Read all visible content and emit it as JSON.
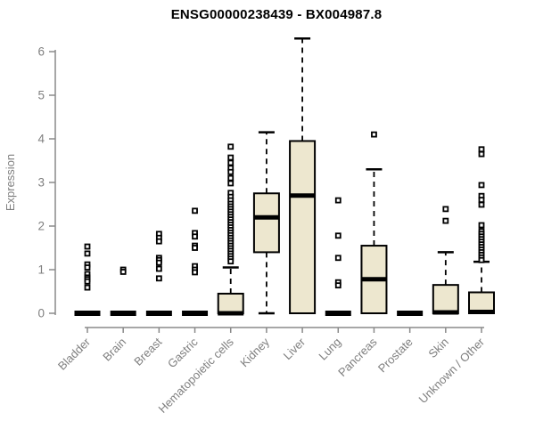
{
  "colors": {
    "box_fill": "#EDE7CF",
    "box_stroke": "#000000",
    "median": "#000000",
    "whisker": "#000000",
    "axis": "#8a8a8a",
    "tick_label": "#7f7f7f",
    "title": "#000000",
    "background": "#ffffff"
  },
  "chart_data": {
    "type": "boxplot",
    "title": "ENSG00000238439 - BX004987.8",
    "xlabel": "",
    "ylabel": "Expression",
    "ylim": [
      0,
      6
    ],
    "yticks": [
      0,
      1,
      2,
      3,
      4,
      5,
      6
    ],
    "grid": false,
    "legend": false,
    "categories": [
      "Bladder",
      "Brain",
      "Breast",
      "Gastric",
      "Hematopoietic cells",
      "Kidney",
      "Liver",
      "Lung",
      "Pancreas",
      "Prostate",
      "Skin",
      "Unknown / Other"
    ],
    "boxes": [
      {
        "category": "Bladder",
        "min": 0,
        "q1": 0,
        "median": 0,
        "q3": 0,
        "max": 0,
        "outliers": [
          1.53,
          1.37,
          1.12,
          1.05,
          0.9,
          0.82,
          0.78,
          0.73,
          0.59
        ]
      },
      {
        "category": "Brain",
        "min": 0,
        "q1": 0,
        "median": 0,
        "q3": 0,
        "max": 0,
        "outliers": [
          1.0,
          0.95
        ]
      },
      {
        "category": "Breast",
        "min": 0,
        "q1": 0,
        "median": 0,
        "q3": 0,
        "max": 0,
        "outliers": [
          1.82,
          1.73,
          1.65,
          1.27,
          1.22,
          1.16,
          1.02,
          0.8
        ]
      },
      {
        "category": "Gastric",
        "min": 0,
        "q1": 0,
        "median": 0,
        "q3": 0,
        "max": 0,
        "outliers": [
          2.35,
          1.84,
          1.76,
          1.55,
          1.5,
          1.08,
          1.0,
          0.94
        ]
      },
      {
        "category": "Hematopoietic cells",
        "min": 0,
        "q1": 0,
        "median": 0,
        "q3": 0.45,
        "max": 1.05,
        "outliers": [
          3.82,
          3.57,
          3.45,
          3.33,
          3.24,
          3.1,
          2.98,
          2.76,
          2.67,
          2.59,
          2.51,
          2.45,
          2.39,
          2.33,
          2.27,
          2.21,
          2.15,
          2.09,
          2.03,
          1.97,
          1.91,
          1.85,
          1.79,
          1.73,
          1.67,
          1.61,
          1.55,
          1.49,
          1.43,
          1.37,
          1.31,
          1.25,
          1.19
        ]
      },
      {
        "category": "Kidney",
        "min": 0,
        "q1": 1.4,
        "median": 2.2,
        "q3": 2.75,
        "max": 4.15,
        "outliers": []
      },
      {
        "category": "Liver",
        "min": 0,
        "q1": 0,
        "median": 2.7,
        "q3": 3.95,
        "max": 6.3,
        "outliers": []
      },
      {
        "category": "Lung",
        "min": 0,
        "q1": 0,
        "median": 0,
        "q3": 0,
        "max": 0,
        "outliers": [
          2.59,
          1.78,
          1.27,
          0.71,
          0.64
        ]
      },
      {
        "category": "Pancreas",
        "min": 0,
        "q1": 0,
        "median": 0.78,
        "q3": 1.55,
        "max": 3.3,
        "outliers": [
          4.1
        ]
      },
      {
        "category": "Prostate",
        "min": 0,
        "q1": 0,
        "median": 0,
        "q3": 0,
        "max": 0,
        "outliers": []
      },
      {
        "category": "Skin",
        "min": 0,
        "q1": 0,
        "median": 0.02,
        "q3": 0.65,
        "max": 1.4,
        "outliers": [
          2.39,
          2.12
        ]
      },
      {
        "category": "Unknown / Other",
        "min": 0,
        "q1": 0,
        "median": 0.03,
        "q3": 0.48,
        "max": 1.18,
        "outliers": [
          3.76,
          3.65,
          2.94,
          2.69,
          2.6,
          2.49,
          2.02,
          1.88,
          1.82,
          1.76,
          1.7,
          1.64,
          1.58,
          1.52,
          1.46,
          1.4,
          1.34,
          1.28,
          1.22
        ]
      }
    ]
  }
}
